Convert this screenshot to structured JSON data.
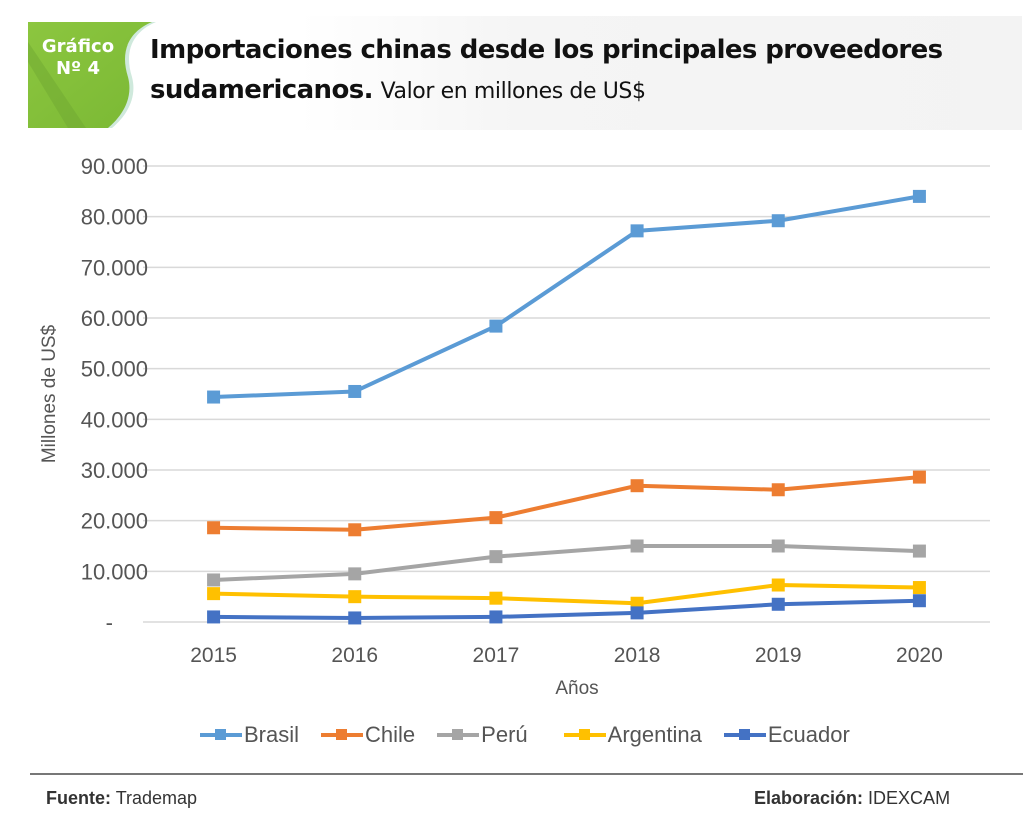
{
  "header": {
    "badge_line1": "Gráfico",
    "badge_line2": "Nº 4",
    "title_bold": "Importaciones chinas desde los principales proveedores sudamericanos.",
    "title_subtitle": "Valor en millones de US$",
    "badge_color": "#8cc63f"
  },
  "chart_data": {
    "type": "line",
    "title": "Importaciones chinas desde los principales proveedores sudamericanos. Valor en millones de US$",
    "xlabel": "Años",
    "ylabel": "Millones de US$",
    "categories": [
      "2015",
      "2016",
      "2017",
      "2018",
      "2019",
      "2020"
    ],
    "ylim": [
      0,
      90000
    ],
    "yticks": [
      0,
      10000,
      20000,
      30000,
      40000,
      50000,
      60000,
      70000,
      80000,
      90000
    ],
    "ytick_labels": [
      "-",
      "10.000",
      "20.000",
      "30.000",
      "40.000",
      "50.000",
      "60.000",
      "70.000",
      "80.000",
      "90.000"
    ],
    "grid": true,
    "legend_position": "bottom",
    "series": [
      {
        "name": "Brasil",
        "color": "#5b9bd5",
        "values": [
          44400,
          45500,
          58400,
          77200,
          79200,
          84000
        ]
      },
      {
        "name": "Chile",
        "color": "#ed7d31",
        "values": [
          18600,
          18200,
          20600,
          26900,
          26100,
          28600
        ]
      },
      {
        "name": "Perú",
        "color": "#a5a5a5",
        "values": [
          8300,
          9500,
          12900,
          15000,
          15000,
          14000
        ]
      },
      {
        "name": "Argentina",
        "color": "#ffc000",
        "values": [
          5600,
          5000,
          4700,
          3700,
          7300,
          6800
        ]
      },
      {
        "name": "Ecuador",
        "color": "#4472c4",
        "values": [
          1000,
          800,
          1000,
          1800,
          3500,
          4200
        ]
      }
    ]
  },
  "footer": {
    "source_label": "Fuente:",
    "source_value": "Trademap",
    "credit_label": "Elaboración:",
    "credit_value": "IDEXCAM"
  }
}
